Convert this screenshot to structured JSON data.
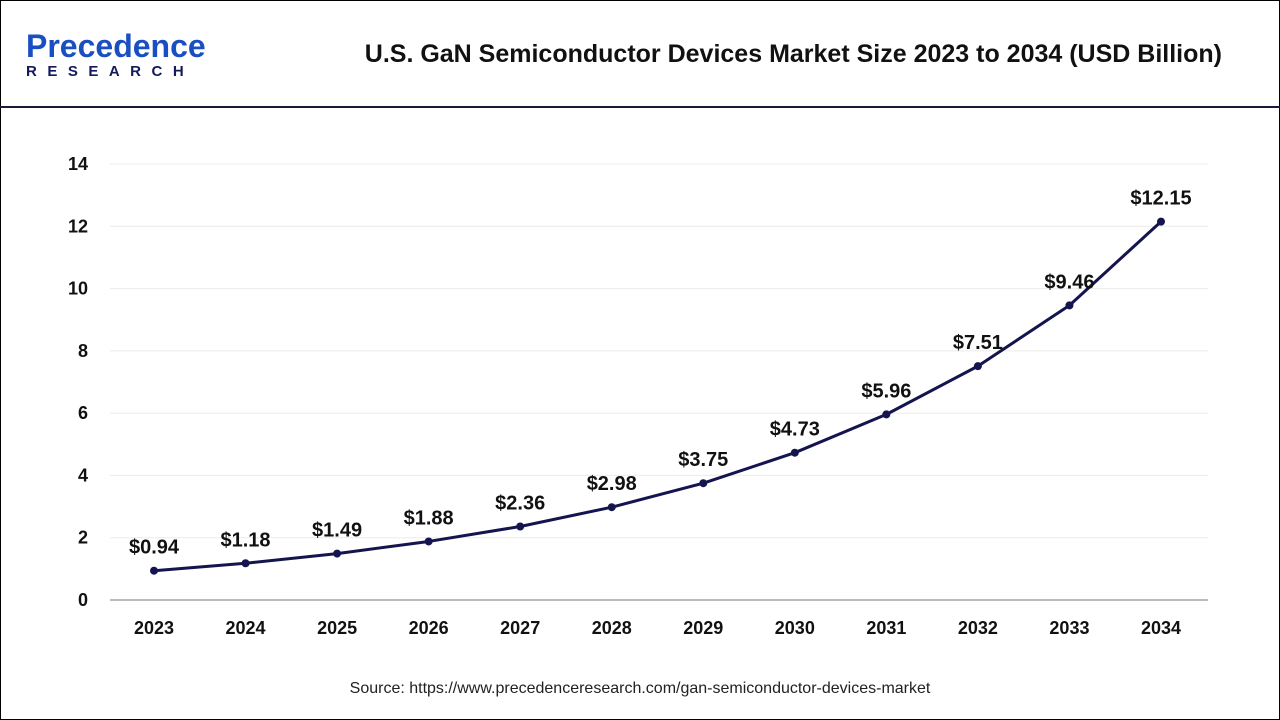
{
  "logo": {
    "text_main": "Precedence",
    "text_sub": "RESEARCH"
  },
  "chart_data": {
    "type": "line",
    "title": "U.S. GaN Semiconductor Devices Market Size 2023 to 2034 (USD Billion)",
    "xlabel": "",
    "ylabel": "",
    "categories": [
      "2023",
      "2024",
      "2025",
      "2026",
      "2027",
      "2028",
      "2029",
      "2030",
      "2031",
      "2032",
      "2033",
      "2034"
    ],
    "values": [
      0.94,
      1.18,
      1.49,
      1.88,
      2.36,
      2.98,
      3.75,
      4.73,
      5.96,
      7.51,
      9.46,
      12.15
    ],
    "data_labels": [
      "$0.94",
      "$1.18",
      "$1.49",
      "$1.88",
      "$2.36",
      "$2.98",
      "$3.75",
      "$4.73",
      "$5.96",
      "$7.51",
      "$9.46",
      "$12.15"
    ],
    "yticks": [
      0,
      2,
      4,
      6,
      8,
      10,
      12,
      14
    ],
    "ylim": [
      0,
      14
    ],
    "grid": true,
    "line_color": "#14144f"
  },
  "source": "Source: https://www.precedenceresearch.com/gan-semiconductor-devices-market"
}
